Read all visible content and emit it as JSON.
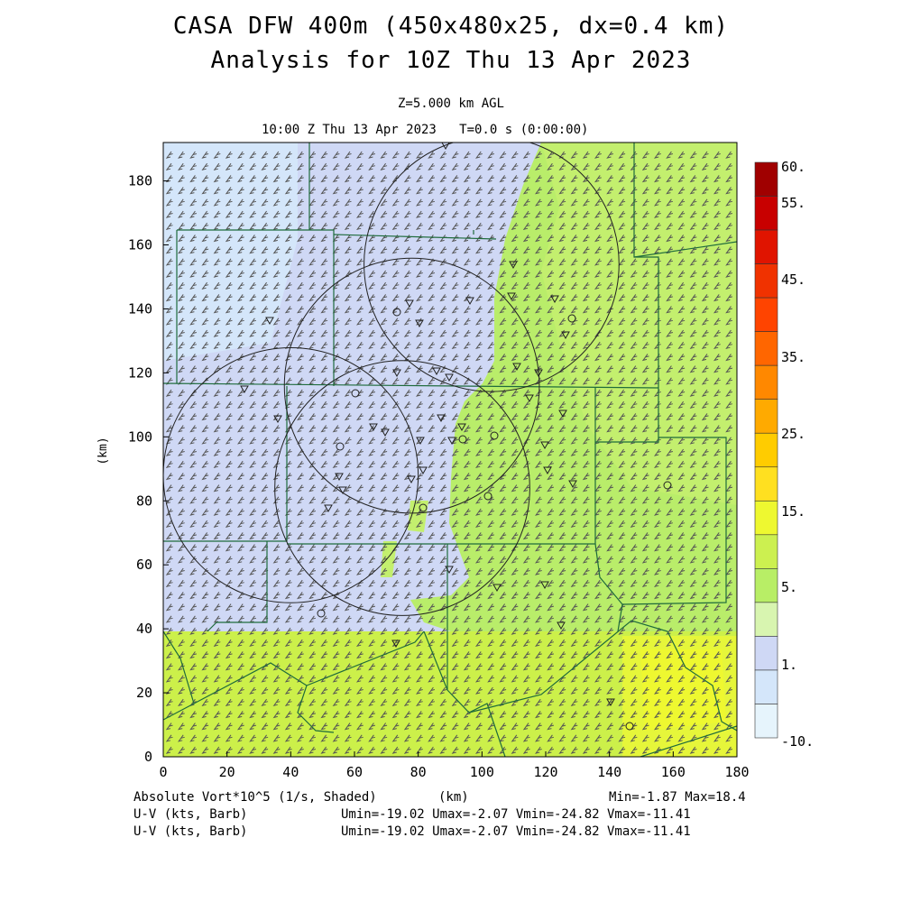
{
  "header": {
    "title_line1": "CASA DFW 400m (450x480x25, dx=0.4 km)",
    "title_line2": "Analysis for 10Z Thu 13 Apr 2023",
    "level": "Z=5.000 km AGL",
    "time": "10:00 Z Thu 13 Apr 2023   T=0.0 s (0:00:00)"
  },
  "chart_data": {
    "type": "heatmap",
    "xlabel": "(km)",
    "ylabel": "(km)",
    "xlim": [
      0,
      180
    ],
    "ylim": [
      0,
      192
    ],
    "x_ticks": [
      "0",
      "20",
      "40",
      "60",
      "80",
      "100",
      "120",
      "140",
      "160",
      "180"
    ],
    "y_ticks": [
      "0",
      "20",
      "40",
      "60",
      "80",
      "100",
      "120",
      "140",
      "160",
      "180"
    ],
    "field": "Absolute Vort*10^5 (1/s, Shaded)",
    "min": "-1.87",
    "max": "18.4",
    "colorbar": {
      "labels": [
        "60.",
        "55.",
        "45.",
        "35.",
        "25.",
        "15.",
        "5.",
        "1.",
        "-10."
      ],
      "colors": [
        "#a00000",
        "#c80000",
        "#e01400",
        "#f03200",
        "#ff4400",
        "#ff6600",
        "#ff8800",
        "#ffaa00",
        "#ffcc00",
        "#ffe020",
        "#eef830",
        "#ccf050",
        "#b8ee66",
        "#d8f5b0",
        "#cfd8f5",
        "#d4e6fa",
        "#e6f4fc"
      ]
    },
    "wind": {
      "u_min": -19.02,
      "u_max": -2.07,
      "v_min": -24.82,
      "v_max": -11.41
    },
    "radars": [
      {
        "x": 78,
        "y": 116,
        "r": 40
      },
      {
        "x": 103,
        "y": 154,
        "r": 40
      },
      {
        "x": 40,
        "y": 88,
        "r": 40
      },
      {
        "x": 75,
        "y": 84,
        "r": 40
      }
    ]
  },
  "footer": {
    "field_label": "Absolute Vort*10^5 (1/s, Shaded)",
    "xaxis_unit": "(km)",
    "minmax": "Min=-1.87 Max=18.4",
    "barb_label_1": "U-V (kts, Barb)",
    "barb_label_2": "U-V (kts, Barb)",
    "barb_stats_1": "Umin=-19.02 Umax=-2.07 Vmin=-24.82 Vmax=-11.41",
    "barb_stats_2": "Umin=-19.02 Umax=-2.07 Vmin=-24.82 Vmax=-11.41"
  }
}
